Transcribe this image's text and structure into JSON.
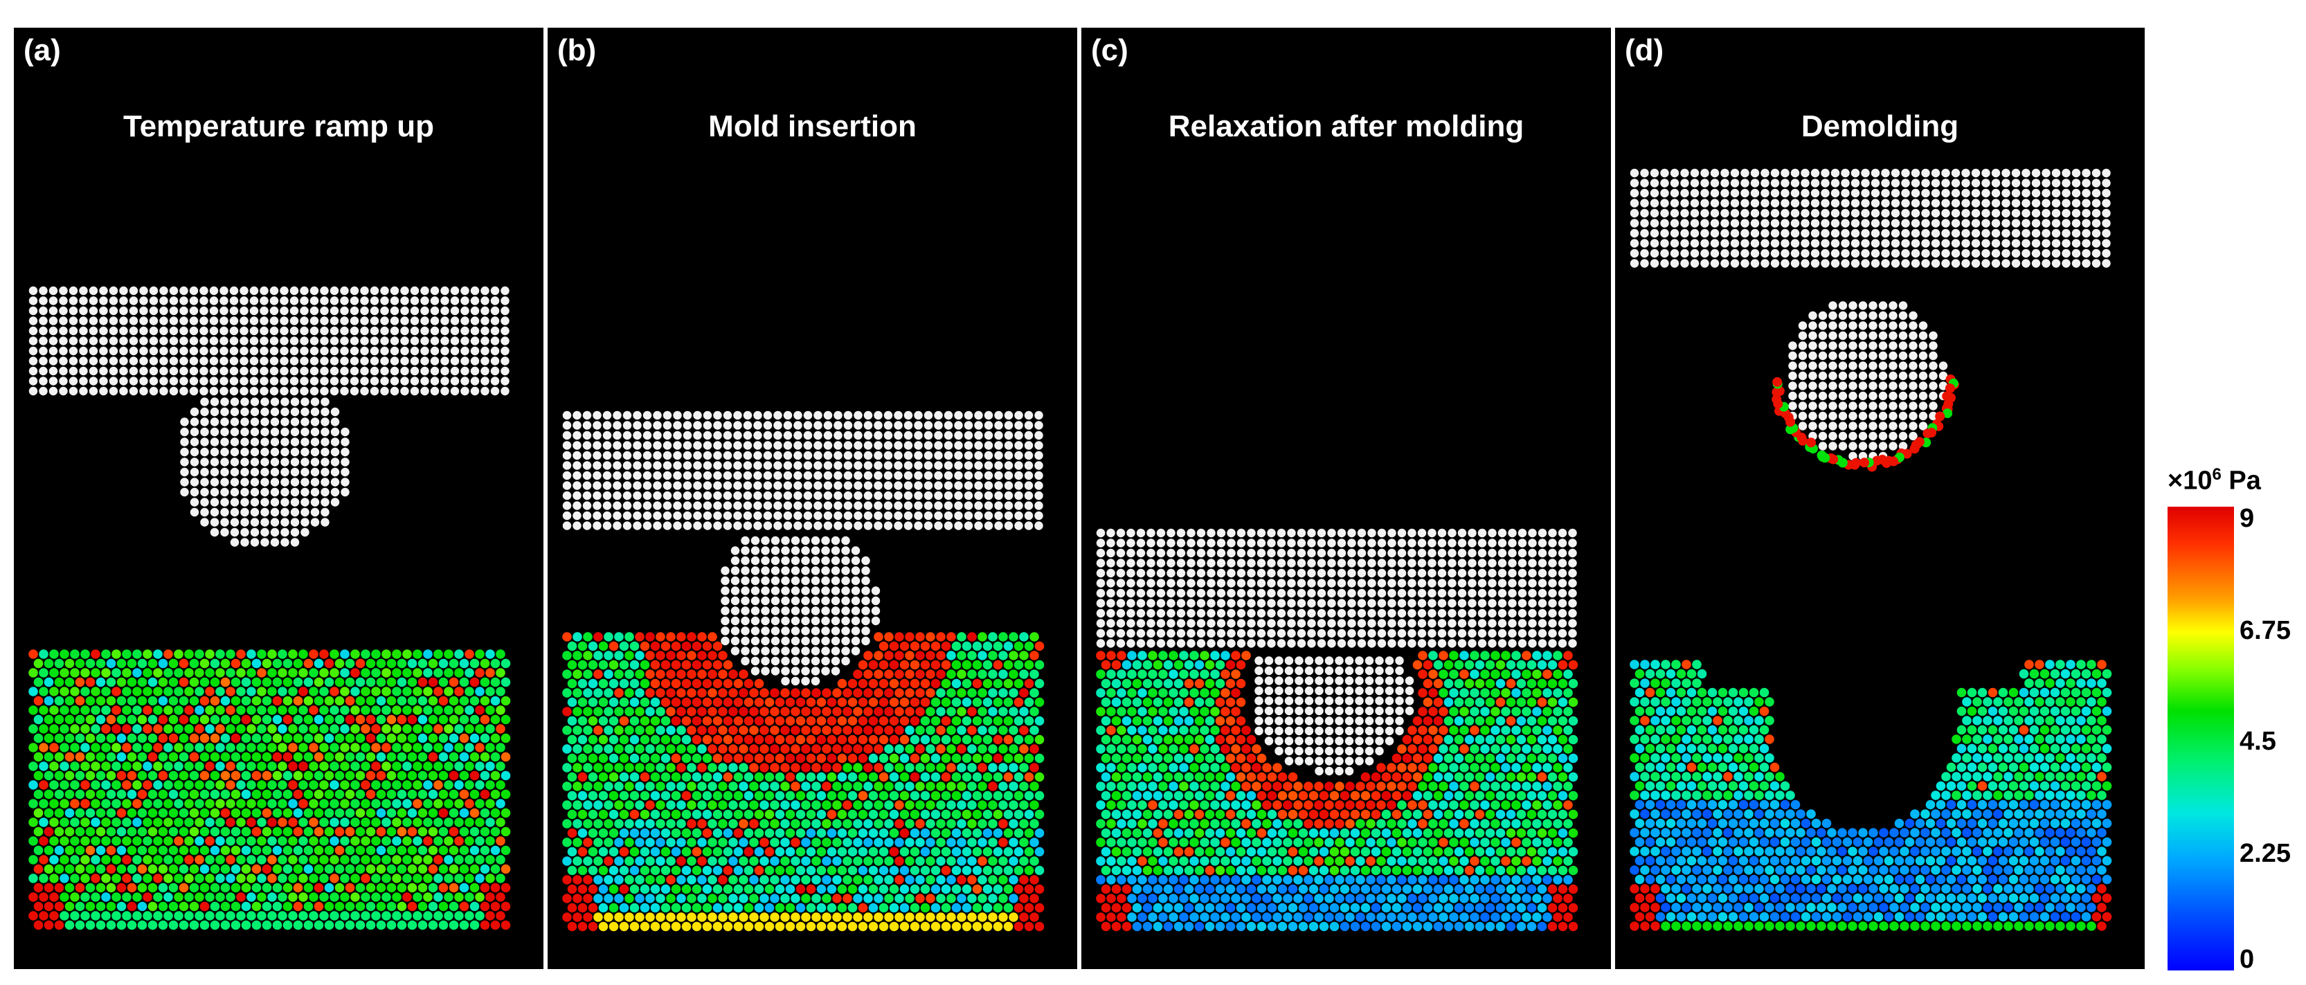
{
  "panels": [
    {
      "label": "(a)",
      "title": "Temperature ramp up"
    },
    {
      "label": "(b)",
      "title": "Mold insertion"
    },
    {
      "label": "(c)",
      "title": "Relaxation after molding"
    },
    {
      "label": "(d)",
      "title": "Demolding"
    }
  ],
  "colorbar": {
    "multiplier": "×10",
    "exponent": "6",
    "unit": "Pa",
    "ticks": [
      "9",
      "6.75",
      "4.5",
      "2.25",
      "0"
    ]
  }
}
